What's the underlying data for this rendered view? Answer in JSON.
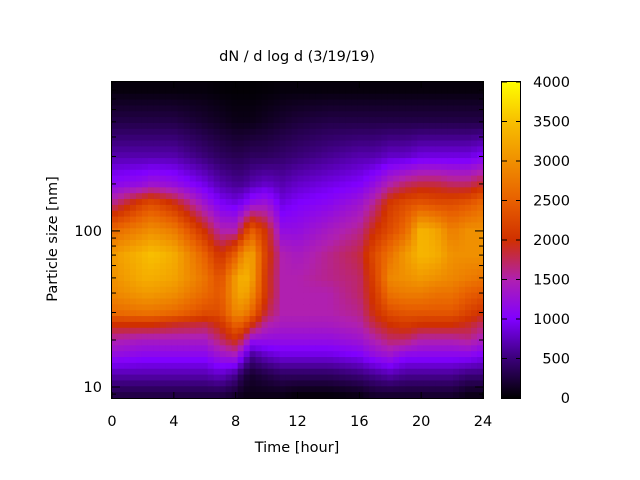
{
  "chart_data": {
    "type": "heatmap",
    "title": "dN / d log d (3/19/19)",
    "xlabel": "Time [hour]",
    "ylabel": "Particle size [nm]",
    "xlim": [
      0,
      24
    ],
    "x_ticks": [
      "0",
      "4",
      "8",
      "12",
      "16",
      "20",
      "24"
    ],
    "x_tick_values": [
      0,
      4,
      8,
      12,
      16,
      20,
      24
    ],
    "y_scale": "log",
    "ylim": [
      8.5,
      900
    ],
    "y_ticks": [
      "10",
      "100"
    ],
    "y_tick_values": [
      10,
      100
    ],
    "colorbar": {
      "ticks": [
        "0",
        "500",
        "1000",
        "1500",
        "2000",
        "2500",
        "3000",
        "3500",
        "4000"
      ],
      "tick_values": [
        0,
        500,
        1000,
        1500,
        2000,
        2500,
        3000,
        3500,
        4000
      ],
      "range": [
        0,
        4000
      ],
      "palette": [
        "#000000",
        "#3a0078",
        "#8000ff",
        "#b020b0",
        "#d03000",
        "#e86000",
        "#f09000",
        "#f8c000",
        "#ffff00"
      ]
    },
    "grid": false,
    "legend": "none",
    "time_grid": [
      0,
      2,
      2.6,
      4,
      6,
      7,
      8,
      8.5,
      9,
      10,
      11,
      12,
      14,
      16,
      17,
      18,
      19,
      20,
      21,
      22,
      23,
      24
    ],
    "size_grid": [
      9,
      12,
      16,
      20,
      25,
      30,
      40,
      50,
      70,
      100,
      150,
      200,
      300,
      500,
      800
    ],
    "values": [
      [
        300,
        700,
        1200,
        1500,
        2000,
        2600,
        2900,
        3000,
        3100,
        2600,
        1600,
        1100,
        700,
        300,
        50
      ],
      [
        300,
        700,
        1100,
        1400,
        2000,
        2700,
        3100,
        3300,
        3400,
        2900,
        2200,
        1200,
        700,
        300,
        50
      ],
      [
        300,
        700,
        1100,
        1400,
        2000,
        2700,
        3100,
        3300,
        3500,
        3000,
        2300,
        1300,
        700,
        300,
        50
      ],
      [
        300,
        700,
        1100,
        1400,
        1900,
        2600,
        3000,
        3200,
        3300,
        2800,
        2000,
        1200,
        700,
        300,
        50
      ],
      [
        300,
        700,
        1100,
        1400,
        1800,
        2300,
        2600,
        2700,
        2500,
        2000,
        1300,
        900,
        500,
        200,
        50
      ],
      [
        300,
        800,
        1300,
        1700,
        2000,
        2300,
        2400,
        2300,
        2000,
        1500,
        1000,
        700,
        400,
        150,
        30
      ],
      [
        200,
        600,
        1400,
        2000,
        2500,
        2900,
        3100,
        3100,
        2500,
        1500,
        900,
        600,
        350,
        100,
        20
      ],
      [
        100,
        300,
        1000,
        1700,
        2400,
        2900,
        3300,
        3400,
        3000,
        2000,
        1000,
        600,
        350,
        100,
        20
      ],
      [
        100,
        200,
        600,
        1200,
        2000,
        2600,
        3000,
        3200,
        3200,
        2500,
        1200,
        700,
        400,
        100,
        20
      ],
      [
        100,
        300,
        800,
        1200,
        1500,
        1800,
        2000,
        2000,
        2100,
        2000,
        1300,
        800,
        400,
        150,
        30
      ],
      [
        100,
        400,
        900,
        1200,
        1400,
        1500,
        1500,
        1500,
        1500,
        1200,
        900,
        700,
        450,
        200,
        50
      ],
      [
        50,
        400,
        900,
        1200,
        1400,
        1500,
        1500,
        1500,
        1400,
        1200,
        1000,
        800,
        500,
        250,
        50
      ],
      [
        50,
        400,
        900,
        1200,
        1400,
        1500,
        1500,
        1600,
        1600,
        1400,
        1100,
        900,
        600,
        300,
        50
      ],
      [
        100,
        500,
        1000,
        1300,
        1500,
        1600,
        1700,
        1700,
        1800,
        1600,
        1300,
        1000,
        700,
        300,
        50
      ],
      [
        200,
        600,
        1200,
        1500,
        1800,
        2000,
        2100,
        2200,
        2300,
        2000,
        1600,
        1200,
        700,
        300,
        50
      ],
      [
        200,
        700,
        1300,
        1700,
        2000,
        2300,
        2700,
        2900,
        2700,
        2300,
        2100,
        1500,
        800,
        300,
        50
      ],
      [
        200,
        600,
        1100,
        1700,
        2100,
        2400,
        2800,
        3000,
        3100,
        2600,
        2300,
        1700,
        800,
        300,
        50
      ],
      [
        200,
        600,
        1100,
        1500,
        2000,
        2400,
        2800,
        3100,
        3400,
        3400,
        2400,
        1800,
        900,
        300,
        50
      ],
      [
        200,
        600,
        1100,
        1500,
        2000,
        2400,
        2700,
        3000,
        3300,
        3200,
        2300,
        1800,
        900,
        300,
        50
      ],
      [
        200,
        600,
        1100,
        1500,
        2000,
        2400,
        2700,
        2900,
        3000,
        2800,
        2300,
        1700,
        900,
        300,
        50
      ],
      [
        100,
        500,
        1100,
        1600,
        1900,
        2200,
        2500,
        2800,
        3000,
        3000,
        2400,
        1700,
        900,
        300,
        50
      ],
      [
        100,
        500,
        1000,
        1400,
        1700,
        2000,
        2400,
        2700,
        3000,
        3000,
        2600,
        1900,
        1000,
        300,
        50
      ]
    ]
  }
}
